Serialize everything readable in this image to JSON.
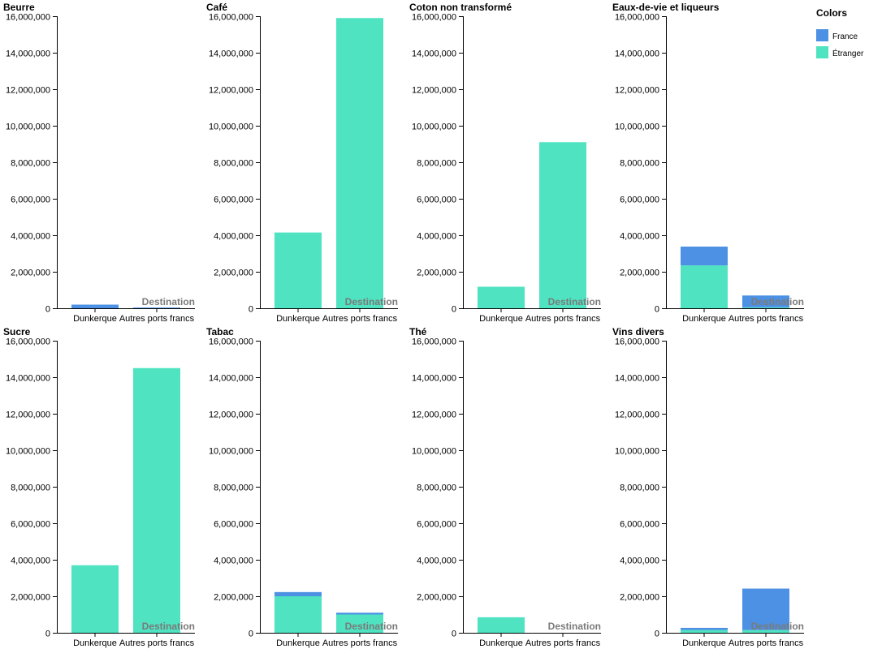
{
  "chart_data": {
    "type": "bar",
    "stacked": true,
    "categories": [
      "Dunkerque",
      "Autres ports francs"
    ],
    "xlabel": "Destination",
    "ylim": [
      0,
      16000000
    ],
    "yticks": [
      0,
      2000000,
      4000000,
      6000000,
      8000000,
      10000000,
      12000000,
      14000000,
      16000000
    ],
    "grid": false,
    "legend": {
      "title": "Colors",
      "placement": "top-right",
      "entries": [
        {
          "name": "France",
          "color": "#4c91e3"
        },
        {
          "name": "Étranger",
          "color": "#4fe3c1"
        }
      ]
    },
    "panels": [
      {
        "title": "Beurre",
        "series": [
          {
            "name": "Étranger",
            "values": [
              0,
              0
            ]
          },
          {
            "name": "France",
            "values": [
              200000,
              40000
            ]
          }
        ]
      },
      {
        "title": "Café",
        "series": [
          {
            "name": "Étranger",
            "values": [
              4150000,
              15900000
            ]
          },
          {
            "name": "France",
            "values": [
              0,
              0
            ]
          }
        ]
      },
      {
        "title": "Coton non transformé",
        "series": [
          {
            "name": "Étranger",
            "values": [
              1180000,
              9100000
            ]
          },
          {
            "name": "France",
            "values": [
              0,
              0
            ]
          }
        ]
      },
      {
        "title": "Eaux-de-vie et liqueurs",
        "series": [
          {
            "name": "Étranger",
            "values": [
              2350000,
              50000
            ]
          },
          {
            "name": "France",
            "values": [
              1030000,
              650000
            ]
          }
        ]
      },
      {
        "title": "Sucre",
        "series": [
          {
            "name": "Étranger",
            "values": [
              3700000,
              14500000
            ]
          },
          {
            "name": "France",
            "values": [
              0,
              0
            ]
          }
        ]
      },
      {
        "title": "Tabac",
        "series": [
          {
            "name": "Étranger",
            "values": [
              2000000,
              1000000
            ]
          },
          {
            "name": "France",
            "values": [
              230000,
              100000
            ]
          }
        ]
      },
      {
        "title": "Thé",
        "series": [
          {
            "name": "Étranger",
            "values": [
              850000,
              0
            ]
          },
          {
            "name": "France",
            "values": [
              0,
              0
            ]
          }
        ]
      },
      {
        "title": "Vins divers",
        "series": [
          {
            "name": "Étranger",
            "values": [
              150000,
              150000
            ]
          },
          {
            "name": "France",
            "values": [
              120000,
              2270000
            ]
          }
        ]
      }
    ]
  }
}
